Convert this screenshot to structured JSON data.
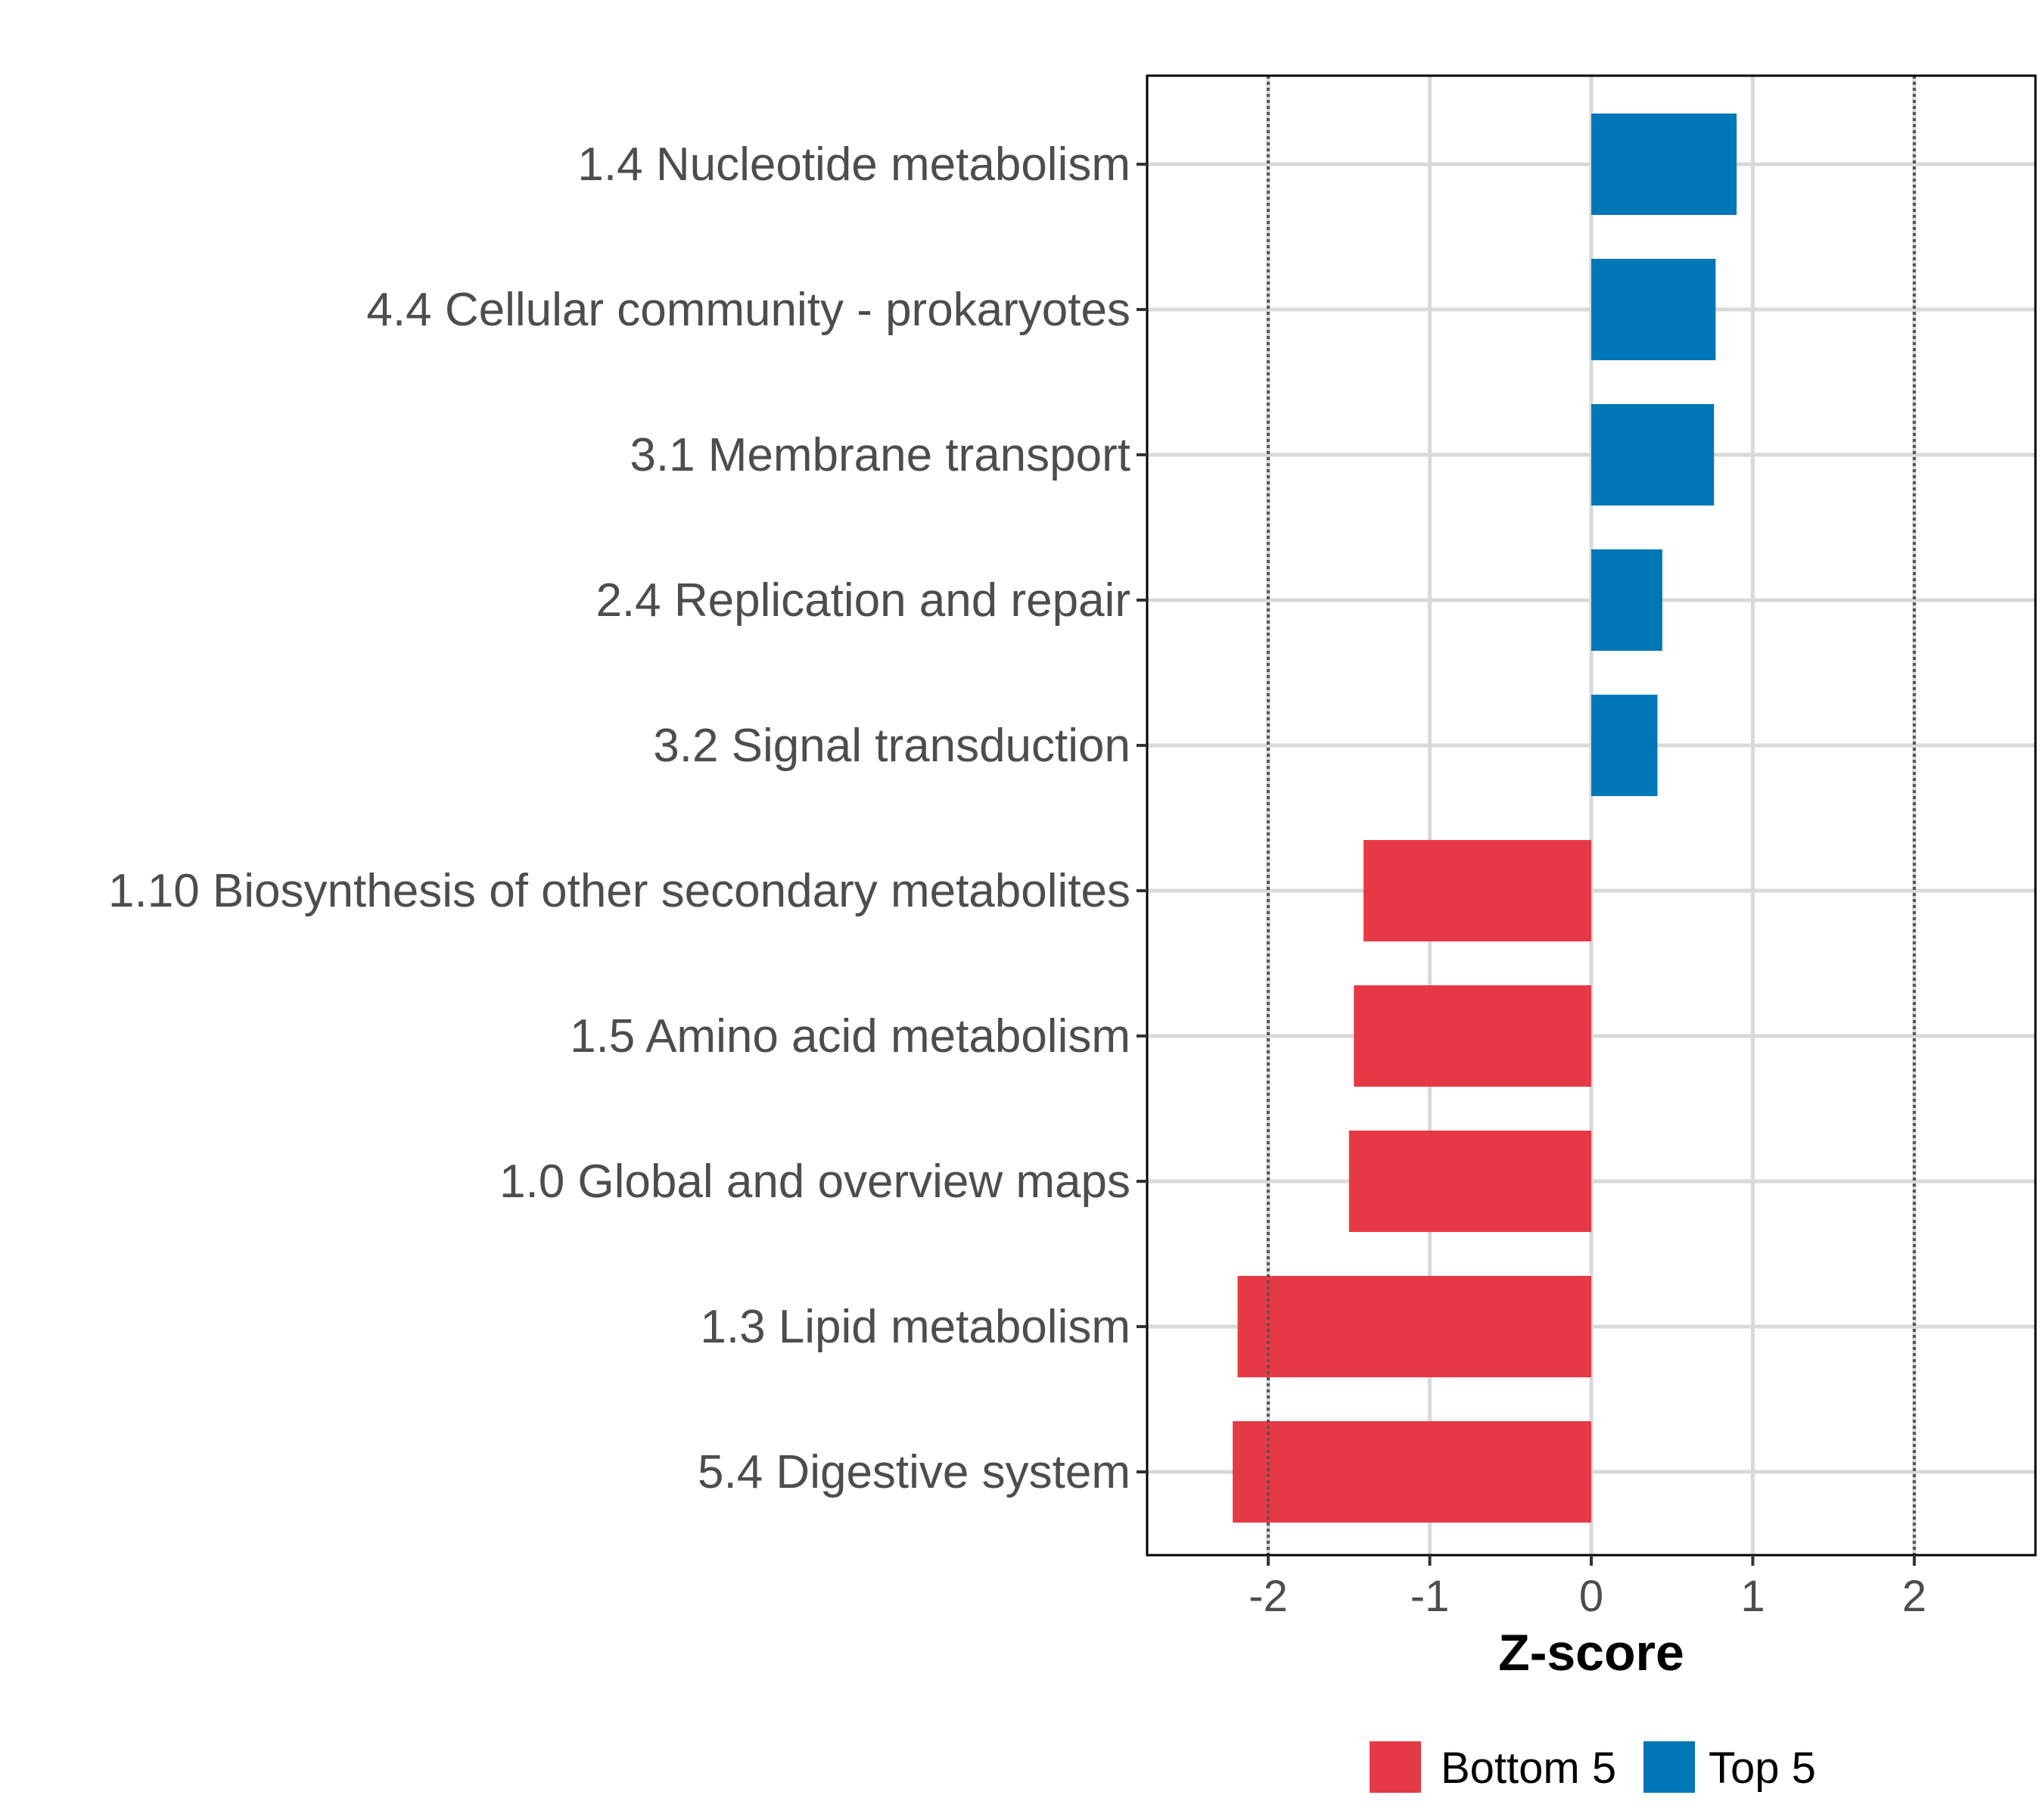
{
  "chart_data": {
    "type": "bar",
    "orientation": "horizontal",
    "categories": [
      "1.4 Nucleotide metabolism",
      "4.4 Cellular community - prokaryotes",
      "3.1 Membrane transport",
      "2.4 Replication and repair",
      "3.2 Signal transduction",
      "1.10 Biosynthesis of other secondary metabolites",
      "1.5 Amino acid metabolism",
      "1.0 Global and overview maps",
      "1.3 Lipid metabolism",
      "5.4 Digestive system"
    ],
    "values": [
      0.9,
      0.77,
      0.76,
      0.44,
      0.41,
      -1.41,
      -1.47,
      -1.5,
      -2.19,
      -2.22
    ],
    "groups": [
      "Top 5",
      "Top 5",
      "Top 5",
      "Top 5",
      "Top 5",
      "Bottom 5",
      "Bottom 5",
      "Bottom 5",
      "Bottom 5",
      "Bottom 5"
    ],
    "xlabel": "Z-score",
    "ylabel": "",
    "xlim": [
      -2.75,
      2.75
    ],
    "xticks": [
      -2,
      -1,
      0,
      1,
      2
    ],
    "xtick_labels": [
      "-2",
      "-1",
      "0",
      "1",
      "2"
    ],
    "reference_lines": [
      -2,
      2
    ],
    "grid": true,
    "legend": {
      "placement": "bottom",
      "entries": [
        {
          "label": "Bottom 5",
          "color": "#E63946"
        },
        {
          "label": "Top 5",
          "color": "#0077B6"
        }
      ]
    },
    "colors": {
      "Bottom 5": "#E63946",
      "Top 5": "#0077B6"
    }
  }
}
